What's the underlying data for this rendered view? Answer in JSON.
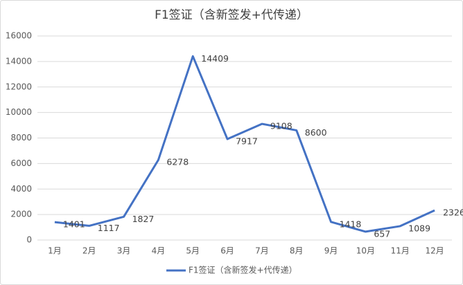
{
  "chart_data": {
    "type": "line",
    "title": "F1签证（含新签发+代传递）",
    "categories": [
      "1月",
      "2月",
      "3月",
      "4月",
      "5月",
      "6月",
      "7月",
      "8月",
      "9月",
      "10月",
      "11月",
      "12月"
    ],
    "series": [
      {
        "name": "F1签证（含新签发+代传递）",
        "color": "#4472c4",
        "values": [
          1401,
          1117,
          1827,
          6278,
          14409,
          7917,
          9108,
          8600,
          1418,
          657,
          1089,
          2326
        ]
      }
    ],
    "ylim": [
      0,
      16000
    ],
    "yticks": [
      0,
      2000,
      4000,
      6000,
      8000,
      10000,
      12000,
      14000,
      16000
    ],
    "grid": true,
    "legend": "bottom"
  }
}
